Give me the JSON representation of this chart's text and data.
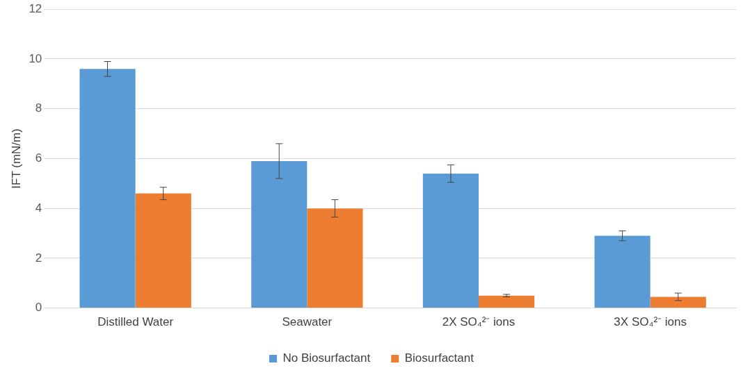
{
  "chart_data": {
    "type": "bar",
    "ylabel": "IFT (mN/m)",
    "categories": [
      "Distilled Water",
      "Seawater",
      "2X SO₄²⁻ ions",
      "3X SO₄²⁻ ions"
    ],
    "series": [
      {
        "name": "No Biosurfactant",
        "color": "#5b9bd5",
        "values": [
          9.6,
          5.9,
          5.4,
          2.9
        ],
        "errors": [
          0.3,
          0.7,
          0.35,
          0.2
        ]
      },
      {
        "name": "Biosurfactant",
        "color": "#ed7d31",
        "values": [
          4.6,
          4.0,
          0.5,
          0.45
        ],
        "errors": [
          0.25,
          0.35,
          0.05,
          0.15
        ]
      }
    ],
    "ylim": [
      0,
      12
    ],
    "yticks": [
      0,
      2,
      4,
      6,
      8,
      10,
      12
    ],
    "grid": "y",
    "legend": "bottom"
  }
}
